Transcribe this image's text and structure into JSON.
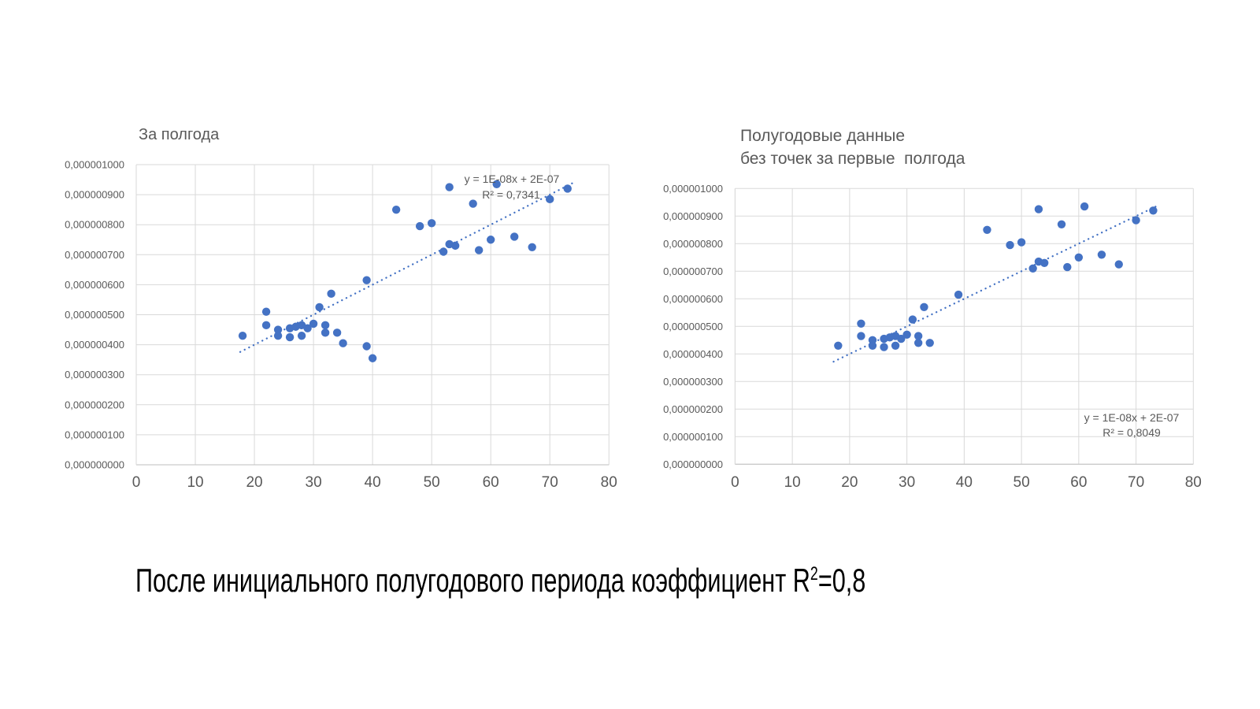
{
  "caption": {
    "prefix": "После инициального полугодового периода коэффициент R",
    "sup": "2",
    "suffix": "=0,8"
  },
  "chart_data": [
    {
      "type": "scatter",
      "title_lines": [
        "За полгода"
      ],
      "xlabel": "",
      "ylabel": "",
      "xlim": [
        0,
        80
      ],
      "ylim": [
        0,
        1e-06
      ],
      "xticks": [
        0,
        10,
        20,
        30,
        40,
        50,
        60,
        70,
        80
      ],
      "ytick_labels": [
        "0,000000000",
        "0,000000100",
        "0,000000200",
        "0,000000300",
        "0,000000400",
        "0,000000500",
        "0,000000600",
        "0,000000700",
        "0,000000800",
        "0,000000900",
        "0,000001000"
      ],
      "grid": true,
      "legend": false,
      "points": [
        [
          18,
          4.3e-07
        ],
        [
          22,
          5.1e-07
        ],
        [
          22,
          4.65e-07
        ],
        [
          24,
          4.5e-07
        ],
        [
          24,
          4.3e-07
        ],
        [
          26,
          4.55e-07
        ],
        [
          26,
          4.25e-07
        ],
        [
          27,
          4.6e-07
        ],
        [
          28,
          4.65e-07
        ],
        [
          28,
          4.3e-07
        ],
        [
          29,
          4.55e-07
        ],
        [
          30,
          4.7e-07
        ],
        [
          31,
          5.25e-07
        ],
        [
          32,
          4.65e-07
        ],
        [
          32,
          4.4e-07
        ],
        [
          33,
          5.7e-07
        ],
        [
          34,
          4.4e-07
        ],
        [
          35,
          4.05e-07
        ],
        [
          39,
          6.15e-07
        ],
        [
          39,
          3.95e-07
        ],
        [
          40,
          3.55e-07
        ],
        [
          44,
          8.5e-07
        ],
        [
          48,
          7.95e-07
        ],
        [
          50,
          8.05e-07
        ],
        [
          52,
          7.1e-07
        ],
        [
          53,
          9.25e-07
        ],
        [
          53,
          7.35e-07
        ],
        [
          54,
          7.3e-07
        ],
        [
          57,
          8.7e-07
        ],
        [
          58,
          7.15e-07
        ],
        [
          60,
          7.5e-07
        ],
        [
          61,
          9.35e-07
        ],
        [
          64,
          7.6e-07
        ],
        [
          67,
          7.25e-07
        ],
        [
          70,
          8.85e-07
        ],
        [
          73,
          9.2e-07
        ]
      ],
      "trendline": {
        "style": "dotted",
        "slope": 1e-08,
        "intercept": 2e-07,
        "x_start": 17.6,
        "x_end": 74.2,
        "equation_label": "y = 1E-08x + 2E-07",
        "r2_label": "R² = 0,7341"
      },
      "colors": {
        "point": "#4472C4",
        "trend": "#4472C4",
        "grid": "#D9D9D9",
        "axis": "#BFBFBF",
        "text": "#595959"
      }
    },
    {
      "type": "scatter",
      "title_lines": [
        "Полугодовые данные",
        "без точек за первые  полгода"
      ],
      "xlabel": "",
      "ylabel": "",
      "xlim": [
        0,
        80
      ],
      "ylim": [
        0,
        1e-06
      ],
      "xticks": [
        0,
        10,
        20,
        30,
        40,
        50,
        60,
        70,
        80
      ],
      "ytick_labels": [
        "0,000000000",
        "0,000000100",
        "0,000000200",
        "0,000000300",
        "0,000000400",
        "0,000000500",
        "0,000000600",
        "0,000000700",
        "0,000000800",
        "0,000000900",
        "0,000001000"
      ],
      "grid": true,
      "legend": false,
      "points": [
        [
          18,
          4.3e-07
        ],
        [
          22,
          5.1e-07
        ],
        [
          22,
          4.65e-07
        ],
        [
          24,
          4.5e-07
        ],
        [
          24,
          4.3e-07
        ],
        [
          26,
          4.55e-07
        ],
        [
          26,
          4.25e-07
        ],
        [
          27,
          4.6e-07
        ],
        [
          28,
          4.65e-07
        ],
        [
          28,
          4.3e-07
        ],
        [
          29,
          4.55e-07
        ],
        [
          30,
          4.7e-07
        ],
        [
          31,
          5.25e-07
        ],
        [
          32,
          4.65e-07
        ],
        [
          32,
          4.4e-07
        ],
        [
          33,
          5.7e-07
        ],
        [
          34,
          4.4e-07
        ],
        [
          39,
          6.15e-07
        ],
        [
          44,
          8.5e-07
        ],
        [
          48,
          7.95e-07
        ],
        [
          50,
          8.05e-07
        ],
        [
          52,
          7.1e-07
        ],
        [
          53,
          9.25e-07
        ],
        [
          53,
          7.35e-07
        ],
        [
          54,
          7.3e-07
        ],
        [
          57,
          8.7e-07
        ],
        [
          58,
          7.15e-07
        ],
        [
          60,
          7.5e-07
        ],
        [
          61,
          9.35e-07
        ],
        [
          64,
          7.6e-07
        ],
        [
          67,
          7.25e-07
        ],
        [
          70,
          8.85e-07
        ],
        [
          73,
          9.2e-07
        ]
      ],
      "trendline": {
        "style": "dotted",
        "slope": 1e-08,
        "intercept": 2e-07,
        "x_start": 17.2,
        "x_end": 73.6,
        "equation_label": "y = 1E-08x + 2E-07",
        "r2_label": "R² = 0,8049"
      },
      "colors": {
        "point": "#4472C4",
        "trend": "#4472C4",
        "grid": "#D9D9D9",
        "axis": "#BFBFBF",
        "text": "#595959"
      }
    }
  ]
}
